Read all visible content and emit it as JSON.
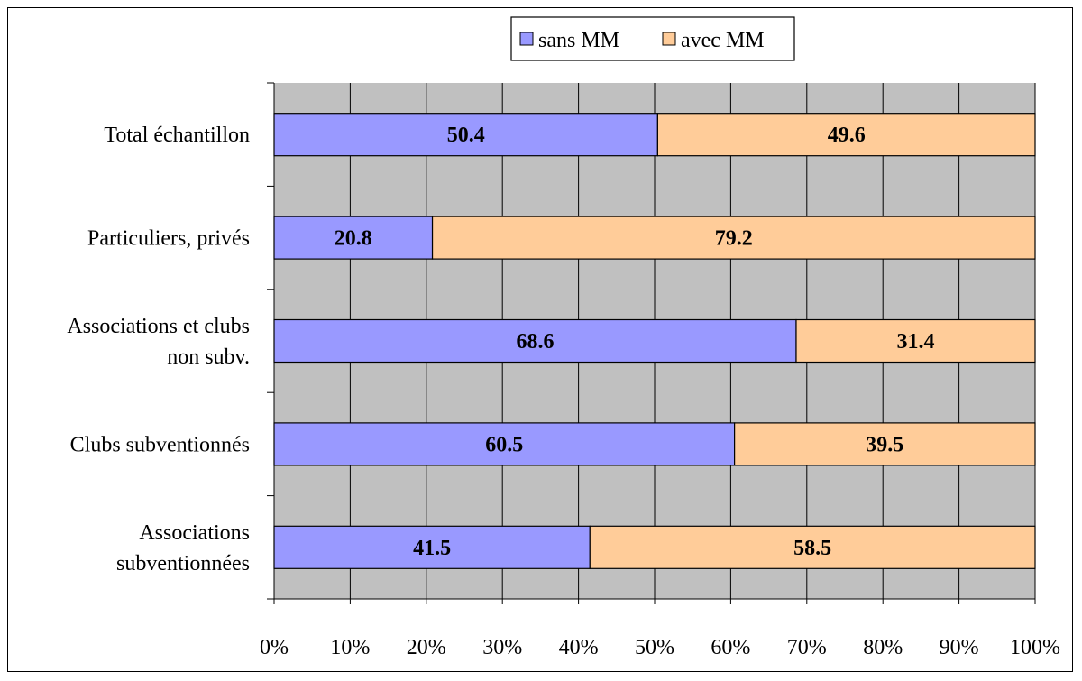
{
  "chart_data": {
    "type": "bar",
    "orientation": "horizontal",
    "stacked": "100%",
    "categories": [
      [
        "Total échantillon"
      ],
      [
        "Particuliers, privés"
      ],
      [
        "Associations et clubs",
        "non subv."
      ],
      [
        "Clubs subventionnés"
      ],
      [
        "Associations",
        "subventionnées"
      ]
    ],
    "series": [
      {
        "name": "sans MM",
        "values": [
          50.4,
          20.8,
          68.6,
          60.5,
          41.5
        ],
        "color": "#9999ff"
      },
      {
        "name": "avec MM",
        "values": [
          49.6,
          79.2,
          31.4,
          39.5,
          58.5
        ],
        "color": "#ffcc99"
      }
    ],
    "x_ticks": [
      "0%",
      "10%",
      "20%",
      "30%",
      "40%",
      "50%",
      "60%",
      "70%",
      "80%",
      "90%",
      "100%"
    ],
    "xlim": [
      0,
      100
    ],
    "grid": true,
    "plot_background": "#c0c0c0",
    "legend_position": "top-center"
  }
}
